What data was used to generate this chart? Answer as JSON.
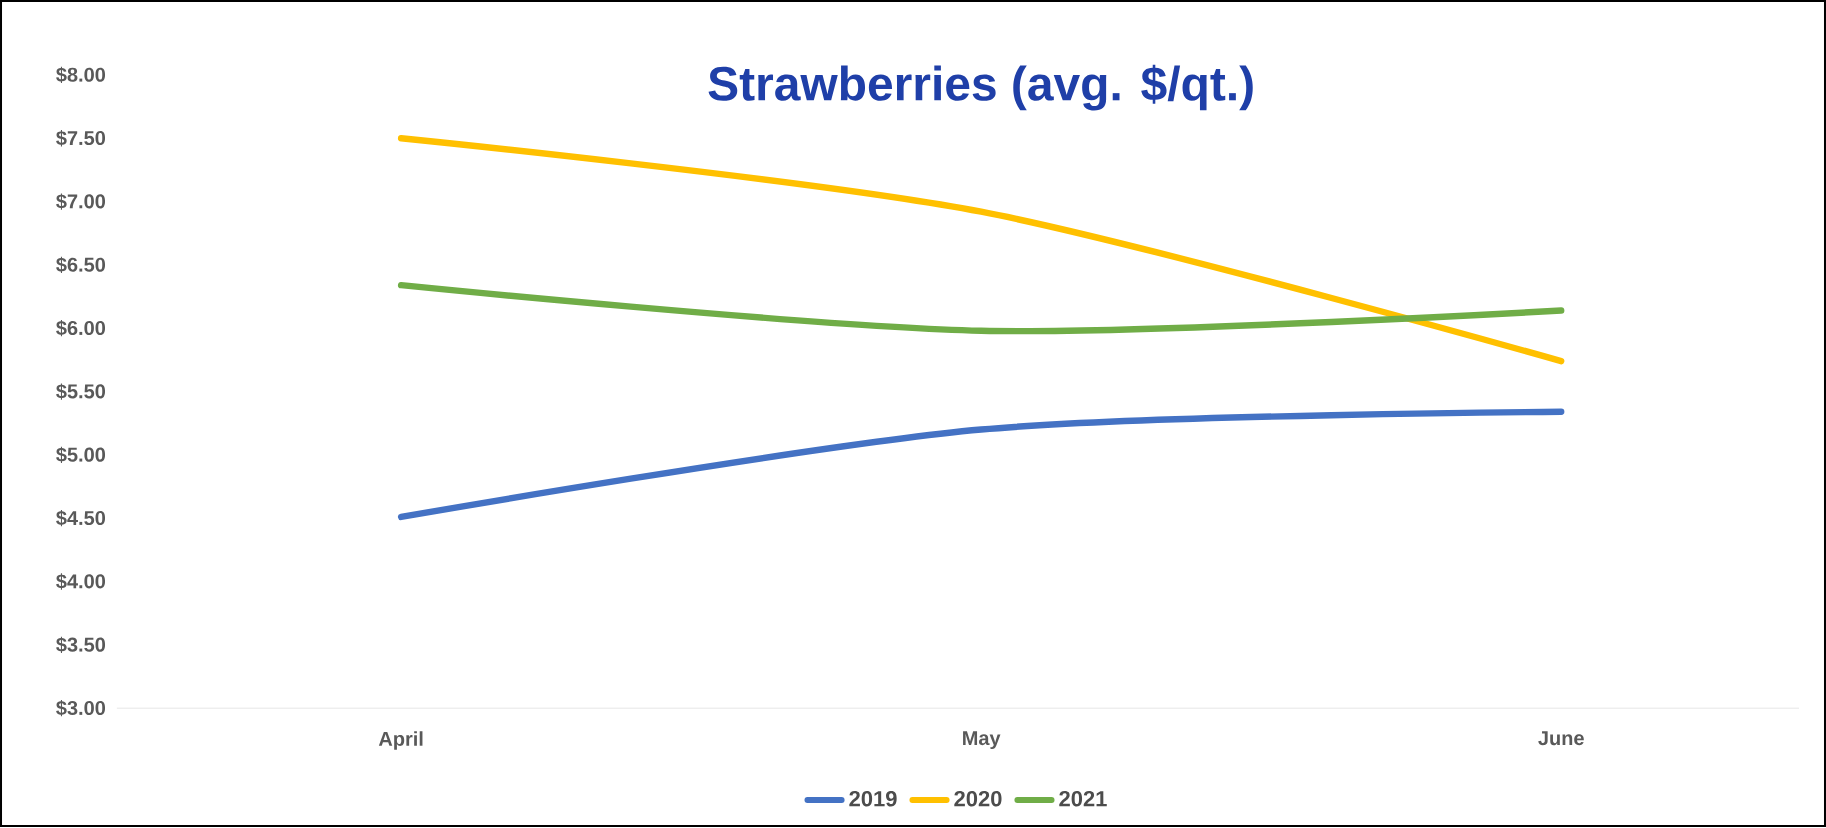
{
  "chart_data": {
    "type": "line",
    "title": "Strawberries (avg. $/qt.)",
    "categories": [
      "April",
      "May",
      "June"
    ],
    "series": [
      {
        "name": "2019",
        "color": "#4472c4",
        "values": [
          4.51,
          5.2,
          5.34
        ]
      },
      {
        "name": "2020",
        "color": "#ffc000",
        "values": [
          7.5,
          6.92,
          5.74
        ]
      },
      {
        "name": "2021",
        "color": "#70ad47",
        "values": [
          6.34,
          5.98,
          6.14
        ]
      }
    ],
    "ylim": [
      3,
      8
    ],
    "yticks": [
      {
        "value": 3,
        "label": "$3.00"
      },
      {
        "value": 3.5,
        "label": "$3.50"
      },
      {
        "value": 4,
        "label": "$4.00"
      },
      {
        "value": 4.5,
        "label": "$4.50"
      },
      {
        "value": 5,
        "label": "$5.00"
      },
      {
        "value": 5.5,
        "label": "$5.50"
      },
      {
        "value": 6,
        "label": "$6.00"
      },
      {
        "value": 6.5,
        "label": "$6.50"
      },
      {
        "value": 7,
        "label": "$7.00"
      },
      {
        "value": 7.5,
        "label": "$7.50"
      },
      {
        "value": 8,
        "label": "$8.00"
      }
    ],
    "grid": false,
    "legend": "bottom",
    "marker": "none",
    "line_style": "solid"
  }
}
